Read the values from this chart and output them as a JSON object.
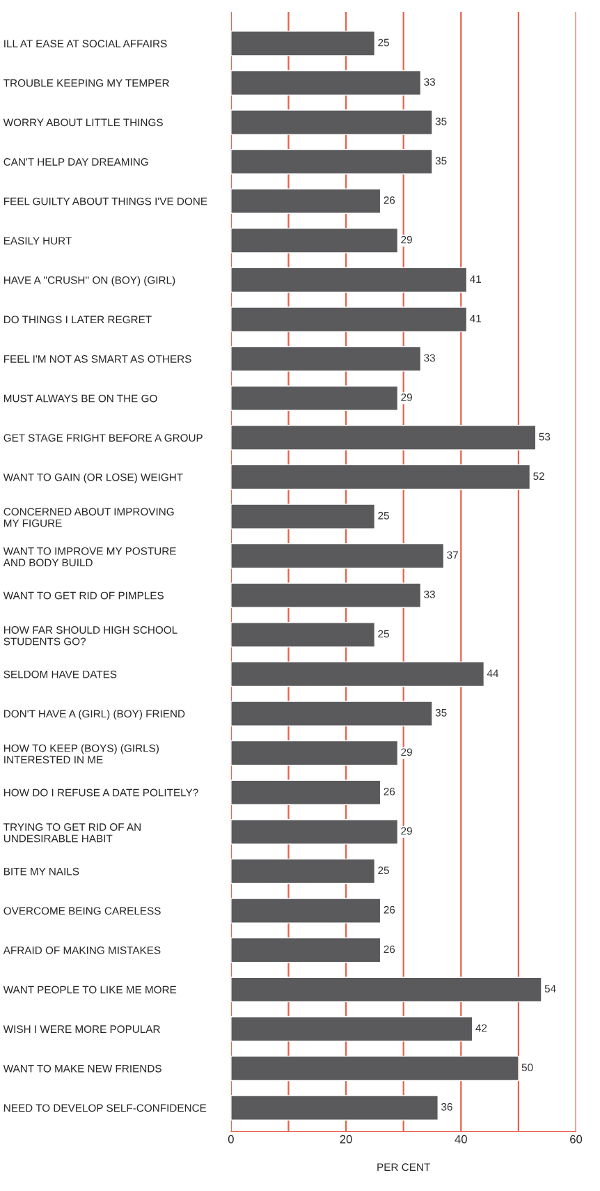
{
  "chart_data": {
    "type": "bar",
    "orientation": "horizontal",
    "categories": [
      "ILL AT EASE AT SOCIAL AFFAIRS",
      "TROUBLE KEEPING MY TEMPER",
      "WORRY ABOUT LITTLE THINGS",
      "CAN'T HELP DAY DREAMING",
      "FEEL GUILTY ABOUT THINGS I'VE DONE",
      "EASILY HURT",
      "HAVE A ''CRUSH'' ON (BOY) (GIRL)",
      "DO THINGS I LATER REGRET",
      "FEEL I'M NOT AS SMART AS OTHERS",
      "MUST ALWAYS BE ON THE GO",
      "GET STAGE FRIGHT BEFORE A GROUP",
      "WANT TO GAIN (OR LOSE) WEIGHT",
      "CONCERNED ABOUT IMPROVING\nMY FIGURE",
      "WANT TO IMPROVE MY POSTURE\nAND BODY BUILD",
      "WANT TO GET RID OF PIMPLES",
      "HOW FAR SHOULD HIGH SCHOOL\nSTUDENTS GO?",
      "SELDOM HAVE DATES",
      "DON'T HAVE A (GIRL) (BOY) FRIEND",
      "HOW TO KEEP (BOYS) (GIRLS)\nINTERESTED IN ME",
      "HOW DO I REFUSE A DATE POLITELY?",
      "TRYING TO GET RID OF AN\nUNDESIRABLE HABIT",
      "BITE MY NAILS",
      "OVERCOME BEING CARELESS",
      "AFRAID OF MAKING MISTAKES",
      "WANT PEOPLE TO LIKE ME MORE",
      "WISH I WERE MORE POPULAR",
      "WANT TO MAKE NEW FRIENDS",
      "NEED TO DEVELOP SELF-CONFIDENCE"
    ],
    "values": [
      25,
      33,
      35,
      35,
      26,
      29,
      41,
      41,
      33,
      29,
      53,
      52,
      25,
      37,
      33,
      25,
      44,
      35,
      29,
      26,
      29,
      25,
      26,
      26,
      54,
      42,
      50,
      36
    ],
    "color": "#5a5a5c",
    "data_labels": true,
    "xlabel": "PER CENT",
    "xlim": [
      0,
      60
    ],
    "xticks": [
      0,
      {
        "value": 10,
        "label": null
      },
      20,
      {
        "value": 30,
        "label": null
      },
      40,
      {
        "value": 50,
        "label": null
      },
      60
    ],
    "grid": "x"
  }
}
